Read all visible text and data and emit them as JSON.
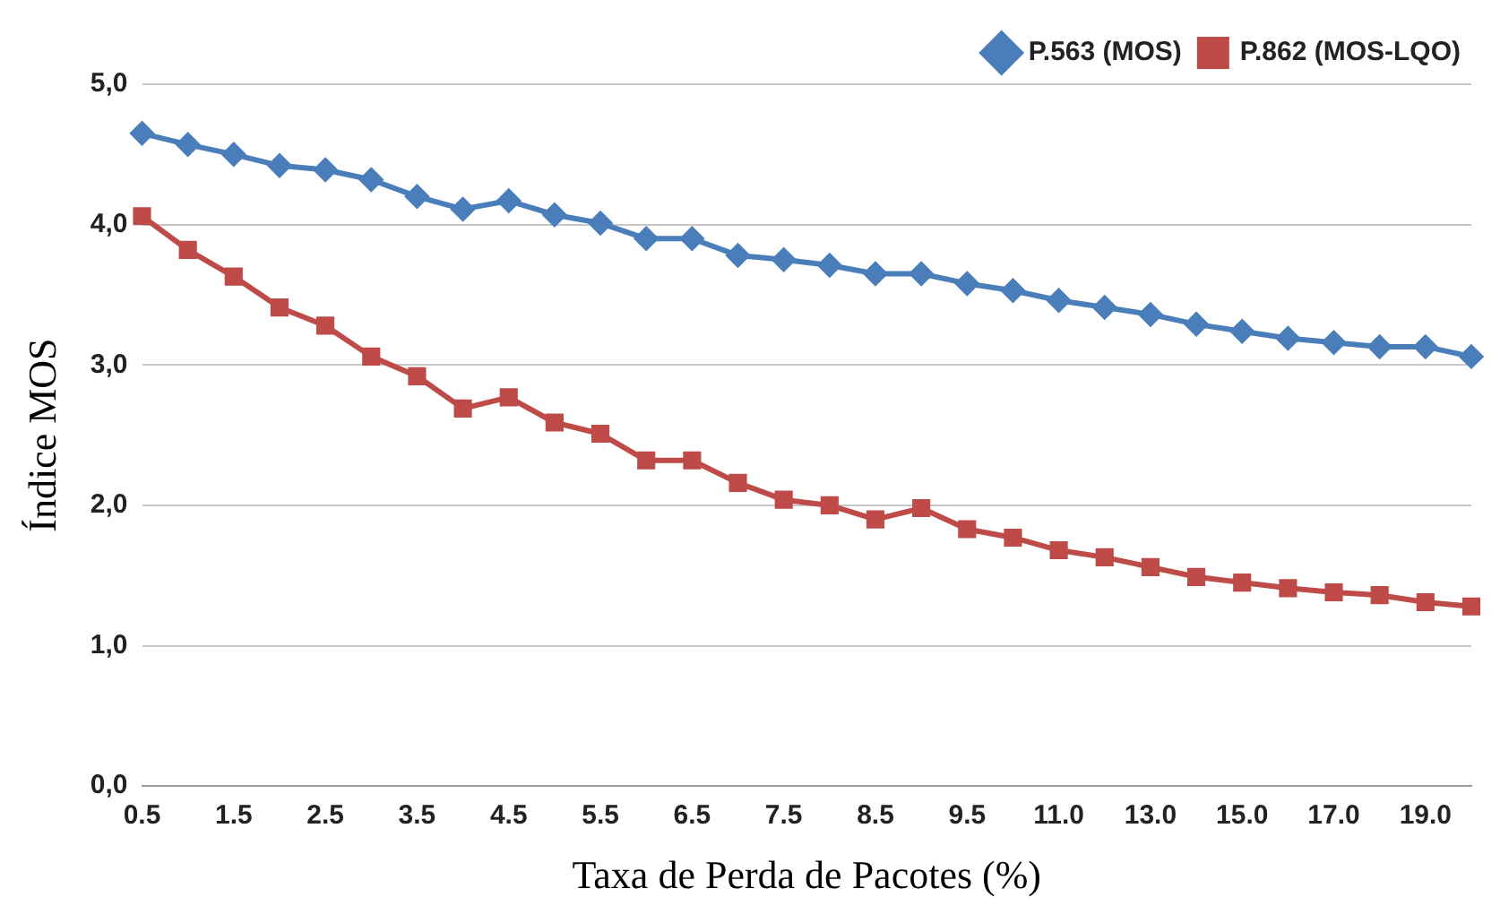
{
  "chart_data": {
    "type": "line",
    "xlabel": "Taxa de Perda de Pacotes (%)",
    "ylabel": "Índice MOS",
    "categories": [
      "0.5",
      null,
      "1.5",
      null,
      "2.5",
      null,
      "3.5",
      null,
      "4.5",
      null,
      "5.5",
      null,
      "6.5",
      null,
      "7.5",
      null,
      "8.5",
      null,
      "9.5",
      null,
      "11.0",
      null,
      "13.0",
      null,
      "15.0",
      null,
      "17.0",
      null,
      "19.0",
      null
    ],
    "series": [
      {
        "name": "P.563 (MOS)",
        "color": "#4a7ebb",
        "marker": "diamond",
        "values": [
          4.65,
          4.57,
          4.5,
          4.42,
          4.39,
          4.32,
          4.2,
          4.11,
          4.17,
          4.07,
          4.01,
          3.9,
          3.9,
          3.78,
          3.75,
          3.71,
          3.65,
          3.65,
          3.58,
          3.53,
          3.46,
          3.41,
          3.36,
          3.29,
          3.24,
          3.19,
          3.16,
          3.13,
          3.13,
          3.06
        ]
      },
      {
        "name": "P.862 (MOS-LQO)",
        "color": "#be4b48",
        "marker": "square",
        "values": [
          4.06,
          3.82,
          3.63,
          3.41,
          3.28,
          3.06,
          2.92,
          2.69,
          2.77,
          2.59,
          2.51,
          2.32,
          2.32,
          2.16,
          2.04,
          2.0,
          1.9,
          1.98,
          1.83,
          1.77,
          1.68,
          1.63,
          1.56,
          1.49,
          1.45,
          1.41,
          1.38,
          1.36,
          1.31,
          1.28
        ]
      }
    ],
    "ylim": [
      0,
      5
    ],
    "yticks": [
      {
        "value": 0,
        "label": "0,0"
      },
      {
        "value": 1,
        "label": "1,0"
      },
      {
        "value": 2,
        "label": "2,0"
      },
      {
        "value": 3,
        "label": "3,0"
      },
      {
        "value": 4,
        "label": "4,0"
      },
      {
        "value": 5,
        "label": "5,0"
      }
    ],
    "grid": "y",
    "legend": "top right",
    "line_style": "solid"
  }
}
